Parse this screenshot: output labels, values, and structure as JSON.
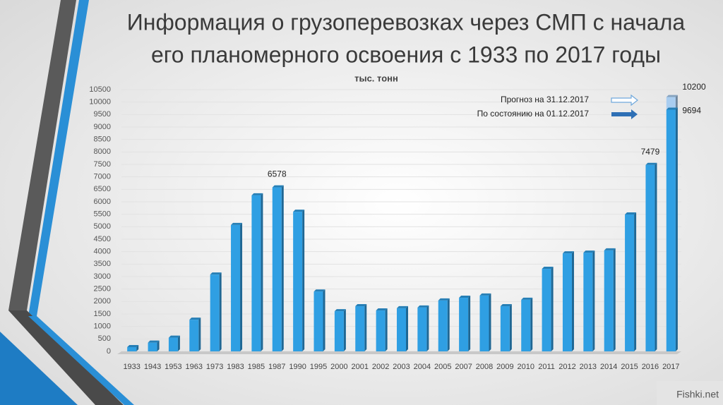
{
  "chart_data": {
    "type": "bar",
    "title": [
      "Информация о грузоперевозках через СМП с  начала",
      "его планомерного освоения с 1933 по 2017 годы"
    ],
    "y_label": "тыс. тонн",
    "categories": [
      "1933",
      "1943",
      "1953",
      "1963",
      "1973",
      "1983",
      "1985",
      "1987",
      "1990",
      "1995",
      "2000",
      "2001",
      "2002",
      "2003",
      "2004",
      "2005",
      "2007",
      "2008",
      "2009",
      "2010",
      "2011",
      "2012",
      "2013",
      "2014",
      "2015",
      "2016",
      "2017"
    ],
    "series": [
      {
        "name": "Прогноз на 31.12.2017",
        "color": "#a9cdf0",
        "values": [
          null,
          null,
          null,
          null,
          null,
          null,
          null,
          null,
          null,
          null,
          null,
          null,
          null,
          null,
          null,
          null,
          null,
          null,
          null,
          null,
          null,
          null,
          null,
          null,
          null,
          null,
          10200
        ],
        "value_labels": [
          null,
          null,
          null,
          null,
          null,
          null,
          null,
          null,
          null,
          null,
          null,
          null,
          null,
          null,
          null,
          null,
          null,
          null,
          null,
          null,
          null,
          null,
          null,
          null,
          null,
          null,
          "10200"
        ]
      },
      {
        "name": "По состоянию на  01.12.2017",
        "color": "#2f9fe3",
        "values": [
          170,
          350,
          550,
          1270,
          3080,
          5070,
          6260,
          6578,
          5600,
          2400,
          1610,
          1810,
          1640,
          1730,
          1760,
          2040,
          2150,
          2240,
          1810,
          2070,
          3310,
          3930,
          3960,
          4050,
          5490,
          7479,
          9694
        ],
        "value_labels": [
          null,
          null,
          null,
          null,
          null,
          null,
          null,
          "6578",
          null,
          null,
          null,
          null,
          null,
          null,
          null,
          null,
          null,
          null,
          null,
          null,
          null,
          null,
          null,
          null,
          null,
          "7479",
          "9694"
        ]
      }
    ],
    "ylim": [
      0,
      10500
    ],
    "yticks": [
      0,
      500,
      1000,
      1500,
      2000,
      2500,
      3000,
      3500,
      4000,
      4500,
      5000,
      5500,
      6000,
      6500,
      7000,
      7500,
      8000,
      8500,
      9000,
      9500,
      10000,
      10500
    ],
    "grid": true
  },
  "watermark": "Fishki.net"
}
